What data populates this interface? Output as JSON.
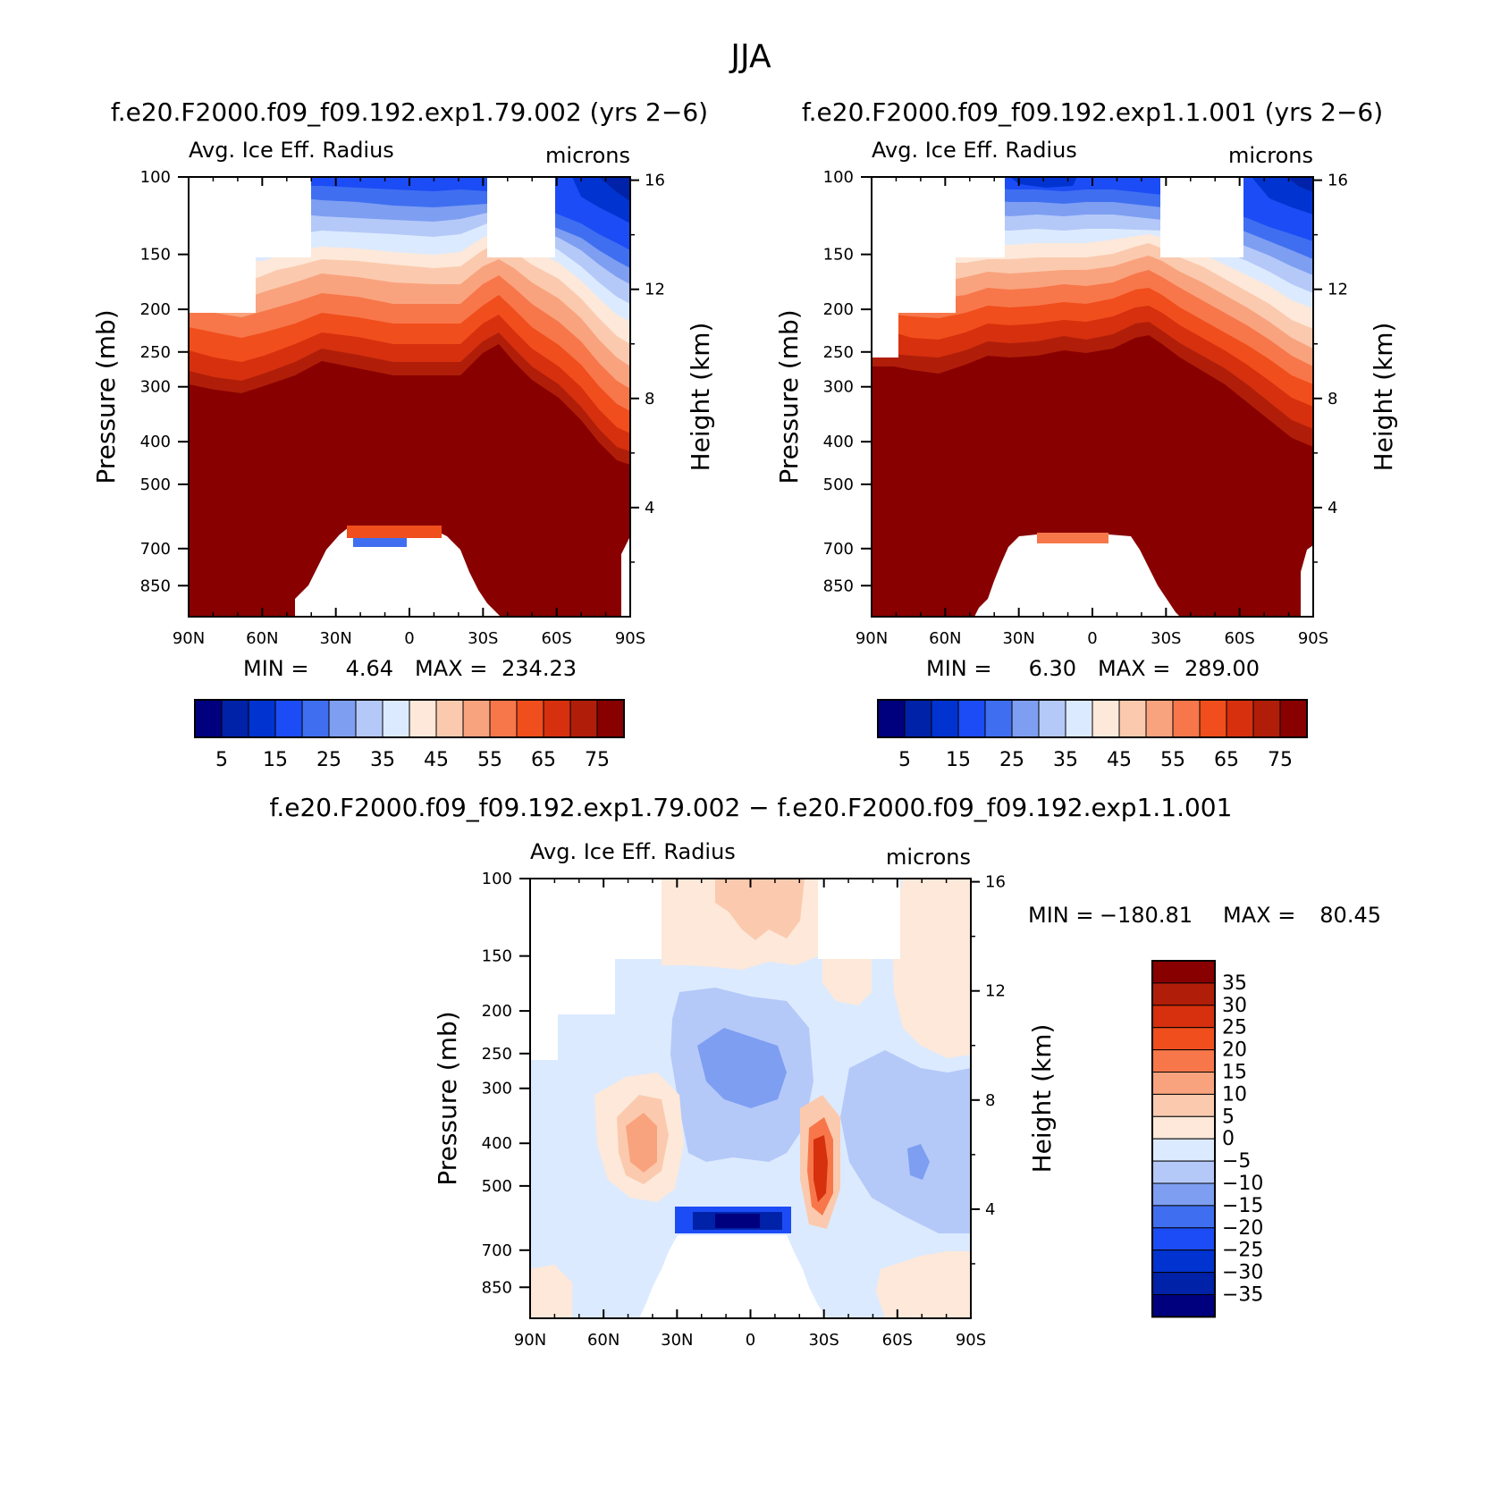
{
  "figure": {
    "title": "JJA"
  },
  "colors": {
    "nonneg_palette": [
      "#00007f",
      "#0022a8",
      "#0033d0",
      "#1c4cf5",
      "#3f6ff0",
      "#7e9ef2",
      "#b4c9f8",
      "#dceaff",
      "#fde8d9",
      "#fbcaae",
      "#f9a37e",
      "#f7774a",
      "#f04e1c",
      "#d6300e",
      "#b01e09",
      "#880000"
    ],
    "diff_palette": [
      "#00007f",
      "#0022a8",
      "#0033d0",
      "#1c4cf5",
      "#3f6ff0",
      "#7e9ef2",
      "#b4c9f8",
      "#dceaff",
      "#fde8d9",
      "#fbcaae",
      "#f9a37e",
      "#f7774a",
      "#f04e1c",
      "#d6300e",
      "#b01e09",
      "#880000"
    ]
  },
  "chart_data": [
    {
      "type": "heatmap",
      "case_title": "f.e20.F2000.f09_f09.192.exp1.79.002 (yrs 2−6)",
      "left_label": "Avg. Ice Eff. Radius",
      "right_label": "microns",
      "ylabel": "Pressure (mb)",
      "ylabel2": "Height (km)",
      "xlabel": "",
      "x_ticks": [
        "90N",
        "60N",
        "30N",
        "0",
        "30S",
        "60S",
        "90S"
      ],
      "x_range": [
        90,
        -90
      ],
      "y_ticks": [
        "100",
        "150",
        "200",
        "250",
        "300",
        "400",
        "500",
        "700",
        "850"
      ],
      "y_range_mb": [
        100,
        1000
      ],
      "y2_ticks": [
        "16",
        "12",
        "8",
        "4"
      ],
      "log_scale": true,
      "stats": {
        "min_label": "MIN =",
        "min": "4.64",
        "max_label": "MAX =",
        "max": "234.23"
      },
      "contour_levels": [
        "0",
        "5",
        "10",
        "15",
        "20",
        "25",
        "30",
        "35",
        "40",
        "45",
        "50",
        "55",
        "60",
        "65",
        "70",
        "75"
      ],
      "colorbar_labels": [
        "5",
        "15",
        "25",
        "35",
        "45",
        "55",
        "65",
        "75"
      ],
      "colorbar_orientation": "horizontal"
    },
    {
      "type": "heatmap",
      "case_title": "f.e20.F2000.f09_f09.192.exp1.1.001 (yrs 2−6)",
      "left_label": "Avg. Ice Eff. Radius",
      "right_label": "microns",
      "ylabel": "Pressure (mb)",
      "ylabel2": "Height (km)",
      "xlabel": "",
      "x_ticks": [
        "90N",
        "60N",
        "30N",
        "0",
        "30S",
        "60S",
        "90S"
      ],
      "x_range": [
        90,
        -90
      ],
      "y_ticks": [
        "100",
        "150",
        "200",
        "250",
        "300",
        "400",
        "500",
        "700",
        "850"
      ],
      "y_range_mb": [
        100,
        1000
      ],
      "y2_ticks": [
        "16",
        "12",
        "8",
        "4"
      ],
      "log_scale": true,
      "stats": {
        "min_label": "MIN =",
        "min": "6.30",
        "max_label": "MAX =",
        "max": "289.00"
      },
      "contour_levels": [
        "0",
        "5",
        "10",
        "15",
        "20",
        "25",
        "30",
        "35",
        "40",
        "45",
        "50",
        "55",
        "60",
        "65",
        "70",
        "75"
      ],
      "colorbar_labels": [
        "5",
        "15",
        "25",
        "35",
        "45",
        "55",
        "65",
        "75"
      ],
      "colorbar_orientation": "horizontal"
    },
    {
      "type": "heatmap",
      "case_title": "f.e20.F2000.f09_f09.192.exp1.79.002 − f.e20.F2000.f09_f09.192.exp1.1.001",
      "left_label": "Avg. Ice Eff. Radius",
      "right_label": "microns",
      "ylabel": "Pressure (mb)",
      "ylabel2": "Height (km)",
      "xlabel": "",
      "x_ticks": [
        "90N",
        "60N",
        "30N",
        "0",
        "30S",
        "60S",
        "90S"
      ],
      "x_range": [
        90,
        -90
      ],
      "y_ticks": [
        "100",
        "150",
        "200",
        "250",
        "300",
        "400",
        "500",
        "700",
        "850"
      ],
      "y_range_mb": [
        100,
        1000
      ],
      "y2_ticks": [
        "16",
        "12",
        "8",
        "4"
      ],
      "log_scale": true,
      "stats": {
        "min_label": "MIN =",
        "min": "−180.81",
        "max_label": "MAX =",
        "max": "80.45"
      },
      "colorbar_labels": [
        "35",
        "30",
        "25",
        "20",
        "15",
        "10",
        "5",
        "0",
        "−5",
        "−10",
        "−15",
        "−20",
        "−25",
        "−30",
        "−35"
      ],
      "colorbar_orientation": "vertical"
    }
  ]
}
